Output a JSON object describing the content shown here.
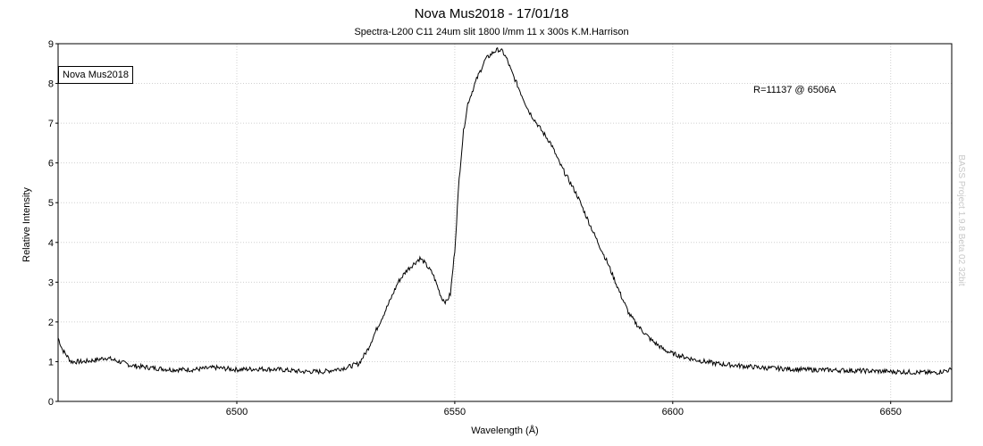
{
  "chart_data": {
    "type": "line",
    "title": "Nova Mus2018 - 17/01/18",
    "subtitle": "Spectra-L200 C11 24um slit 1800 l/mm 11 x 300s K.M.Harrison",
    "xlabel": "Wavelength (Å)",
    "ylabel": "Relative Intensity",
    "xlim": [
      6459,
      6664
    ],
    "ylim": [
      0,
      9
    ],
    "x_ticks": [
      6500,
      6550,
      6600,
      6650
    ],
    "x_tick_labels": [
      "6500",
      "6550",
      "6600",
      "6650"
    ],
    "y_ticks": [
      0,
      1,
      2,
      3,
      4,
      5,
      6,
      7,
      8,
      9
    ],
    "y_tick_labels": [
      "0",
      "1",
      "2",
      "3",
      "4",
      "5",
      "6",
      "7",
      "8",
      "9"
    ],
    "grid": true,
    "legend": "top-left",
    "annotation": "R=11137 @ 6506A",
    "watermark": "BASS Project 1.9.8 Beta 02 32bit",
    "series": [
      {
        "name": "Nova Mus2018",
        "color": "#000000",
        "x": [
          6459,
          6460,
          6462,
          6465,
          6468,
          6470,
          6473,
          6476,
          6480,
          6485,
          6490,
          6495,
          6500,
          6505,
          6510,
          6515,
          6520,
          6525,
          6528,
          6530,
          6532,
          6535,
          6537,
          6539,
          6541,
          6542,
          6543,
          6545,
          6547,
          6548,
          6549,
          6550,
          6551,
          6552,
          6553,
          6555,
          6557,
          6559,
          6560,
          6561,
          6562,
          6563,
          6565,
          6567,
          6570,
          6572,
          6574,
          6576,
          6578,
          6580,
          6582,
          6585,
          6588,
          6590,
          6592,
          6595,
          6598,
          6600,
          6605,
          6610,
          6620,
          6630,
          6640,
          6650,
          6660,
          6664
        ],
        "y": [
          1.6,
          1.3,
          1.0,
          1.0,
          1.05,
          1.1,
          1.0,
          0.9,
          0.85,
          0.8,
          0.8,
          0.85,
          0.8,
          0.82,
          0.8,
          0.75,
          0.75,
          0.85,
          0.95,
          1.3,
          1.8,
          2.5,
          3.0,
          3.3,
          3.5,
          3.6,
          3.5,
          3.2,
          2.6,
          2.5,
          2.7,
          3.8,
          5.6,
          6.8,
          7.5,
          8.1,
          8.6,
          8.8,
          8.85,
          8.8,
          8.6,
          8.3,
          7.8,
          7.3,
          6.8,
          6.5,
          6.0,
          5.6,
          5.2,
          4.7,
          4.2,
          3.5,
          2.7,
          2.2,
          1.9,
          1.55,
          1.3,
          1.2,
          1.05,
          0.95,
          0.85,
          0.8,
          0.78,
          0.75,
          0.72,
          0.8
        ]
      }
    ]
  }
}
